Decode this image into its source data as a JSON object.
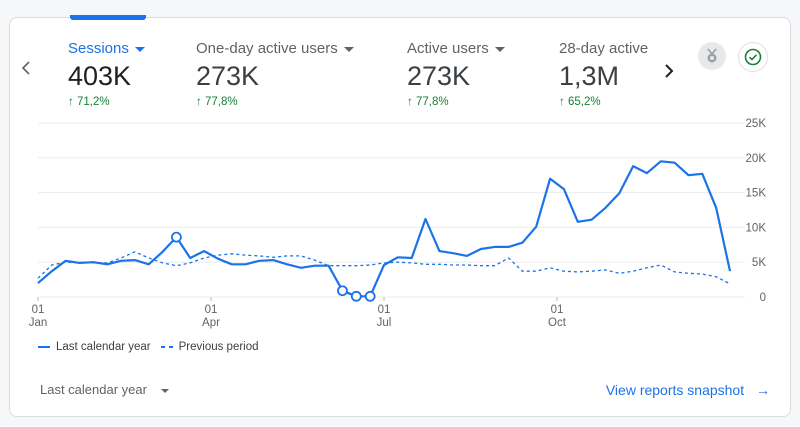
{
  "metrics": [
    {
      "label": "Sessions",
      "value": "403K",
      "change": "71,2%",
      "active": true,
      "dropdown": true
    },
    {
      "label": "One-day active users",
      "value": "273K",
      "change": "77,8%",
      "active": false,
      "dropdown": true
    },
    {
      "label": "Active users",
      "value": "273K",
      "change": "77,8%",
      "active": false,
      "dropdown": true
    },
    {
      "label": "28-day active",
      "value": "1,3M",
      "change": "65,2%",
      "active": false,
      "dropdown": false
    }
  ],
  "icons": {
    "prev": "chevron-left-icon",
    "next": "chevron-right-icon",
    "insight": "medal-icon",
    "status": "check-circle-icon",
    "change": "arrow-up-icon"
  },
  "colors": {
    "accent": "#1a73e8",
    "positive": "#188038"
  },
  "chart_data": {
    "type": "line",
    "title": "",
    "xlabel": "",
    "ylabel": "",
    "ylim": [
      0,
      25000
    ],
    "y_ticks": [
      "0",
      "5K",
      "10K",
      "15K",
      "20K",
      "25K"
    ],
    "y_tick_values": [
      0,
      5000,
      10000,
      15000,
      20000,
      25000
    ],
    "x_ticks": [
      {
        "day": "01",
        "month": "Jan",
        "index": 0
      },
      {
        "day": "01",
        "month": "Apr",
        "index": 12.5
      },
      {
        "day": "01",
        "month": "Jul",
        "index": 25
      },
      {
        "day": "01",
        "month": "Oct",
        "index": 37.5
      }
    ],
    "grid": true,
    "legend_position": "bottom-left",
    "anomaly_indices": [
      10,
      22,
      23,
      24
    ],
    "series": [
      {
        "name": "Last calendar year",
        "style": "solid",
        "values": [
          2000,
          3700,
          5200,
          4900,
          5000,
          4700,
          5200,
          5300,
          4700,
          6500,
          8600,
          5600,
          6600,
          5500,
          4700,
          4700,
          5200,
          5300,
          4700,
          4200,
          4500,
          4500,
          900,
          100,
          100,
          4600,
          5700,
          5600,
          11200,
          6600,
          6300,
          5900,
          6900,
          7200,
          7200,
          7800,
          10100,
          17000,
          15500,
          10800,
          11100,
          12800,
          14900,
          18800,
          17800,
          19500,
          19300,
          17500,
          17700,
          12800,
          3700
        ]
      },
      {
        "name": "Previous period",
        "style": "dashed",
        "values": [
          2700,
          4600,
          5000,
          4900,
          4900,
          4900,
          5600,
          6500,
          5600,
          4900,
          4500,
          4900,
          5600,
          6000,
          6200,
          6000,
          5900,
          5700,
          5900,
          5900,
          5300,
          4500,
          4500,
          4500,
          4600,
          4900,
          5000,
          4900,
          4700,
          4700,
          4600,
          4600,
          4500,
          4500,
          5600,
          3700,
          3700,
          4200,
          3700,
          3600,
          3700,
          3900,
          3400,
          3700,
          4200,
          4600,
          3600,
          3400,
          3300,
          2900,
          1900
        ]
      }
    ]
  },
  "footer": {
    "range_label": "Last calendar year",
    "snapshot_label": "View reports snapshot"
  }
}
